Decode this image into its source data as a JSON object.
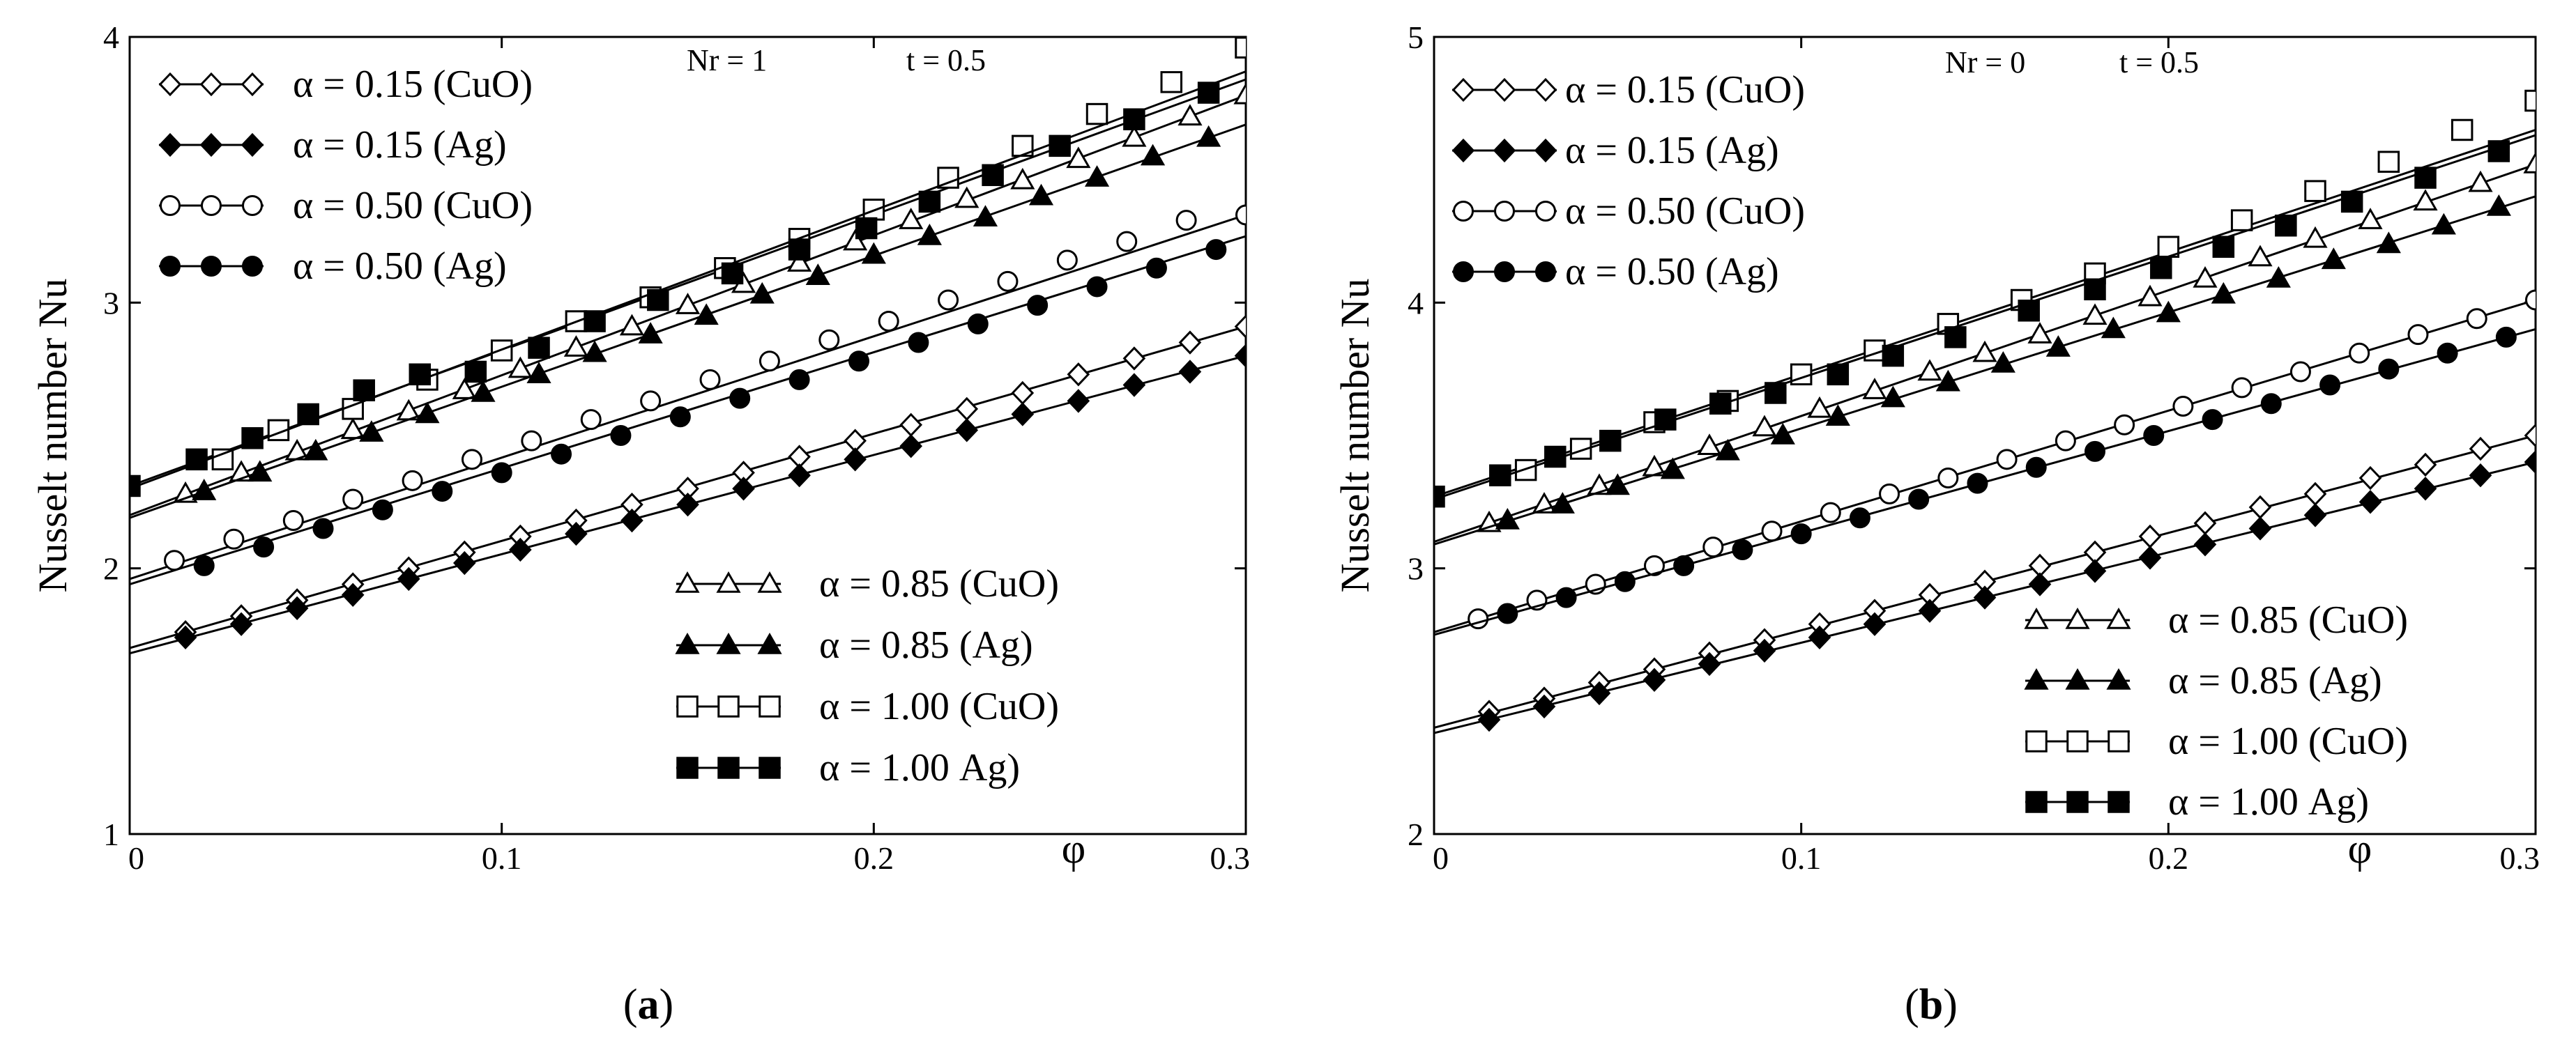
{
  "chart_data": [
    {
      "id": "a",
      "type": "line",
      "caption": "(a)",
      "caption_letter": "a",
      "ylabel": "Nusselt number Nu",
      "xlabel": "φ",
      "annotation": {
        "nr": "Nr = 1",
        "t": "t = 0.5"
      },
      "xlim": [
        0,
        0.3
      ],
      "ylim": [
        1,
        4
      ],
      "xticks": [
        0,
        0.1,
        0.2,
        0.3
      ],
      "xtick_labels": [
        "0",
        "0.1",
        "0.2",
        "0.3"
      ],
      "yticks": [
        1,
        2,
        3,
        4
      ],
      "ytick_labels": [
        "1",
        "2",
        "3",
        "4"
      ],
      "legend_top": [
        {
          "series": 0,
          "label": "α = 0.15 (CuO)"
        },
        {
          "series": 1,
          "label": "α = 0.15 (Ag)"
        },
        {
          "series": 2,
          "label": "α = 0.50 (CuO)"
        },
        {
          "series": 3,
          "label": "α = 0.50 (Ag)"
        }
      ],
      "legend_bottom": [
        {
          "series": 4,
          "label": "α = 0.85 (CuO)"
        },
        {
          "series": 5,
          "label": "α = 0.85 (Ag)"
        },
        {
          "series": 6,
          "label": "α = 1.00 (CuO)"
        },
        {
          "series": 7,
          "label": "α = 1.00 Ag)"
        }
      ],
      "series": [
        {
          "name": "α = 0.15 (CuO)",
          "marker": "diamond",
          "fill": "open",
          "line": [
            1.7,
            2.91
          ],
          "x": [
            0.015,
            0.03,
            0.045,
            0.06,
            0.075,
            0.09,
            0.105,
            0.12,
            0.135,
            0.15,
            0.165,
            0.18,
            0.195,
            0.21,
            0.225,
            0.24,
            0.255,
            0.27,
            0.285,
            0.3
          ],
          "y": [
            1.76,
            1.82,
            1.88,
            1.94,
            2.0,
            2.06,
            2.12,
            2.18,
            2.24,
            2.3,
            2.36,
            2.42,
            2.48,
            2.54,
            2.6,
            2.66,
            2.73,
            2.79,
            2.85,
            2.91
          ]
        },
        {
          "name": "α = 0.15 (Ag)",
          "marker": "diamond",
          "fill": "filled",
          "line": [
            1.68,
            2.8
          ],
          "x": [
            0.015,
            0.03,
            0.045,
            0.06,
            0.075,
            0.09,
            0.105,
            0.12,
            0.135,
            0.15,
            0.165,
            0.18,
            0.195,
            0.21,
            0.225,
            0.24,
            0.255,
            0.27,
            0.285,
            0.3
          ],
          "y": [
            1.74,
            1.79,
            1.85,
            1.9,
            1.96,
            2.02,
            2.07,
            2.13,
            2.18,
            2.24,
            2.3,
            2.35,
            2.41,
            2.46,
            2.52,
            2.58,
            2.63,
            2.69,
            2.74,
            2.8
          ]
        },
        {
          "name": "α = 0.50 (CuO)",
          "marker": "circle",
          "fill": "open",
          "line": [
            1.96,
            3.33
          ],
          "x": [
            0.012,
            0.028,
            0.044,
            0.06,
            0.076,
            0.092,
            0.108,
            0.124,
            0.14,
            0.156,
            0.172,
            0.188,
            0.204,
            0.22,
            0.236,
            0.252,
            0.268,
            0.284,
            0.3
          ],
          "y": [
            2.03,
            2.11,
            2.18,
            2.26,
            2.33,
            2.41,
            2.48,
            2.56,
            2.63,
            2.71,
            2.78,
            2.86,
            2.93,
            3.01,
            3.08,
            3.16,
            3.23,
            3.31,
            3.33
          ]
        },
        {
          "name": "α = 0.50 (Ag)",
          "marker": "circle",
          "fill": "filled",
          "line": [
            1.94,
            3.25
          ],
          "x": [
            0.02,
            0.036,
            0.052,
            0.068,
            0.084,
            0.1,
            0.116,
            0.132,
            0.148,
            0.164,
            0.18,
            0.196,
            0.212,
            0.228,
            0.244,
            0.26,
            0.276,
            0.292
          ],
          "y": [
            2.01,
            2.08,
            2.15,
            2.22,
            2.29,
            2.36,
            2.43,
            2.5,
            2.57,
            2.64,
            2.71,
            2.78,
            2.85,
            2.92,
            2.99,
            3.06,
            3.13,
            3.2
          ]
        },
        {
          "name": "α = 0.85 (CuO)",
          "marker": "triangle",
          "fill": "open",
          "line": [
            2.2,
            3.78
          ],
          "x": [
            0.015,
            0.03,
            0.045,
            0.06,
            0.075,
            0.09,
            0.105,
            0.12,
            0.135,
            0.15,
            0.165,
            0.18,
            0.195,
            0.21,
            0.225,
            0.24,
            0.255,
            0.27,
            0.285,
            0.3
          ],
          "y": [
            2.28,
            2.36,
            2.44,
            2.52,
            2.59,
            2.67,
            2.75,
            2.83,
            2.91,
            2.99,
            3.07,
            3.15,
            3.23,
            3.31,
            3.39,
            3.46,
            3.54,
            3.62,
            3.7,
            3.78
          ]
        },
        {
          "name": "α = 0.85 (Ag)",
          "marker": "triangle",
          "fill": "filled",
          "line": [
            2.19,
            3.67
          ],
          "x": [
            0.02,
            0.035,
            0.05,
            0.065,
            0.08,
            0.095,
            0.11,
            0.125,
            0.14,
            0.155,
            0.17,
            0.185,
            0.2,
            0.215,
            0.23,
            0.245,
            0.26,
            0.275,
            0.29
          ],
          "y": [
            2.29,
            2.36,
            2.44,
            2.51,
            2.58,
            2.66,
            2.73,
            2.81,
            2.88,
            2.95,
            3.03,
            3.1,
            3.18,
            3.25,
            3.32,
            3.4,
            3.47,
            3.55,
            3.62
          ]
        },
        {
          "name": "α = 1.00 (CuO)",
          "marker": "square",
          "fill": "open",
          "line": [
            2.31,
            3.84
          ],
          "x": [
            0.025,
            0.04,
            0.06,
            0.08,
            0.1,
            0.12,
            0.14,
            0.16,
            0.18,
            0.2,
            0.22,
            0.24,
            0.26,
            0.28,
            0.3
          ],
          "y": [
            2.41,
            2.52,
            2.6,
            2.71,
            2.82,
            2.93,
            3.02,
            3.13,
            3.24,
            3.35,
            3.47,
            3.59,
            3.71,
            3.83,
            3.96
          ]
        },
        {
          "name": "α = 1.00 Ag)",
          "marker": "square",
          "fill": "filled",
          "line": [
            2.3,
            3.87
          ],
          "x": [
            0,
            0.018,
            0.033,
            0.048,
            0.063,
            0.078,
            0.093,
            0.11,
            0.125,
            0.142,
            0.162,
            0.18,
            0.198,
            0.215,
            0.232,
            0.25,
            0.27,
            0.29
          ],
          "y": [
            2.31,
            2.41,
            2.49,
            2.58,
            2.67,
            2.73,
            2.74,
            2.83,
            2.93,
            3.01,
            3.11,
            3.2,
            3.28,
            3.38,
            3.48,
            3.59,
            3.69,
            3.79
          ]
        }
      ]
    },
    {
      "id": "b",
      "type": "line",
      "caption": "(b)",
      "caption_letter": "b",
      "ylabel": "Nusselt number Nu",
      "xlabel": "φ",
      "annotation": {
        "nr": "Nr = 0",
        "t": "t = 0.5"
      },
      "xlim": [
        0,
        0.3
      ],
      "ylim": [
        2,
        5
      ],
      "xticks": [
        0,
        0.1,
        0.2,
        0.3
      ],
      "xtick_labels": [
        "0",
        "0.1",
        "0.2",
        "0.3"
      ],
      "yticks": [
        2,
        3,
        4,
        5
      ],
      "ytick_labels": [
        "2",
        "3",
        "4",
        "5"
      ],
      "legend_top": [
        {
          "series": 0,
          "label": "α = 0.15 (CuO)"
        },
        {
          "series": 1,
          "label": "α = 0.15 (Ag)"
        },
        {
          "series": 2,
          "label": "α = 0.50 (CuO)"
        },
        {
          "series": 3,
          "label": "α = 0.50 (Ag)"
        }
      ],
      "legend_bottom": [
        {
          "series": 4,
          "label": "α = 0.85 (CuO)"
        },
        {
          "series": 5,
          "label": "α = 0.85 (Ag)"
        },
        {
          "series": 6,
          "label": "α = 1.00 (CuO)"
        },
        {
          "series": 7,
          "label": "α = 1.00 Ag)"
        }
      ],
      "series": [
        {
          "name": "α = 0.15 (CuO)",
          "marker": "diamond",
          "fill": "open",
          "line": [
            2.4,
            3.5
          ],
          "x": [
            0.015,
            0.03,
            0.045,
            0.06,
            0.075,
            0.09,
            0.105,
            0.12,
            0.135,
            0.15,
            0.165,
            0.18,
            0.195,
            0.21,
            0.225,
            0.24,
            0.255,
            0.27,
            0.285,
            0.3
          ],
          "y": [
            2.46,
            2.51,
            2.57,
            2.62,
            2.68,
            2.73,
            2.79,
            2.84,
            2.9,
            2.95,
            3.01,
            3.06,
            3.12,
            3.17,
            3.23,
            3.28,
            3.34,
            3.39,
            3.45,
            3.5
          ]
        },
        {
          "name": "α = 0.15 (Ag)",
          "marker": "diamond",
          "fill": "filled",
          "line": [
            2.38,
            3.4
          ],
          "x": [
            0.015,
            0.03,
            0.045,
            0.06,
            0.075,
            0.09,
            0.105,
            0.12,
            0.135,
            0.15,
            0.165,
            0.18,
            0.195,
            0.21,
            0.225,
            0.24,
            0.255,
            0.27,
            0.285,
            0.3
          ],
          "y": [
            2.43,
            2.48,
            2.53,
            2.58,
            2.64,
            2.69,
            2.74,
            2.79,
            2.84,
            2.89,
            2.94,
            2.99,
            3.04,
            3.09,
            3.15,
            3.2,
            3.25,
            3.3,
            3.35,
            3.4
          ]
        },
        {
          "name": "α = 0.50 (CuO)",
          "marker": "circle",
          "fill": "open",
          "line": [
            2.76,
            4.01
          ],
          "x": [
            0.012,
            0.028,
            0.044,
            0.06,
            0.076,
            0.092,
            0.108,
            0.124,
            0.14,
            0.156,
            0.172,
            0.188,
            0.204,
            0.22,
            0.236,
            0.252,
            0.268,
            0.284,
            0.3
          ],
          "y": [
            2.81,
            2.88,
            2.94,
            3.01,
            3.08,
            3.14,
            3.21,
            3.28,
            3.34,
            3.41,
            3.48,
            3.54,
            3.61,
            3.68,
            3.74,
            3.81,
            3.88,
            3.94,
            4.01
          ]
        },
        {
          "name": "α = 0.50 (Ag)",
          "marker": "circle",
          "fill": "filled",
          "line": [
            2.75,
            3.9
          ],
          "x": [
            0.02,
            0.036,
            0.052,
            0.068,
            0.084,
            0.1,
            0.116,
            0.132,
            0.148,
            0.164,
            0.18,
            0.196,
            0.212,
            0.228,
            0.244,
            0.26,
            0.276,
            0.292
          ],
          "y": [
            2.83,
            2.89,
            2.95,
            3.01,
            3.07,
            3.13,
            3.19,
            3.26,
            3.32,
            3.38,
            3.44,
            3.5,
            3.56,
            3.62,
            3.69,
            3.75,
            3.81,
            3.87
          ]
        },
        {
          "name": "α = 0.85 (CuO)",
          "marker": "triangle",
          "fill": "open",
          "line": [
            3.1,
            4.52
          ],
          "x": [
            0.015,
            0.03,
            0.045,
            0.06,
            0.075,
            0.09,
            0.105,
            0.12,
            0.135,
            0.15,
            0.165,
            0.18,
            0.195,
            0.21,
            0.225,
            0.24,
            0.255,
            0.27,
            0.285,
            0.3
          ],
          "y": [
            3.17,
            3.24,
            3.31,
            3.38,
            3.46,
            3.53,
            3.6,
            3.67,
            3.74,
            3.81,
            3.88,
            3.95,
            4.02,
            4.09,
            4.17,
            4.24,
            4.31,
            4.38,
            4.45,
            4.52
          ]
        },
        {
          "name": "α = 0.85 (Ag)",
          "marker": "triangle",
          "fill": "filled",
          "line": [
            3.09,
            4.4
          ],
          "x": [
            0.02,
            0.035,
            0.05,
            0.065,
            0.08,
            0.095,
            0.11,
            0.125,
            0.14,
            0.155,
            0.17,
            0.185,
            0.2,
            0.215,
            0.23,
            0.245,
            0.26,
            0.275,
            0.29
          ],
          "y": [
            3.18,
            3.24,
            3.31,
            3.37,
            3.44,
            3.5,
            3.57,
            3.64,
            3.7,
            3.77,
            3.83,
            3.9,
            3.96,
            4.03,
            4.09,
            4.16,
            4.22,
            4.29,
            4.36
          ]
        },
        {
          "name": "α = 1.00 (CuO)",
          "marker": "square",
          "fill": "open",
          "line": [
            3.27,
            4.65
          ],
          "x": [
            0.025,
            0.04,
            0.06,
            0.08,
            0.1,
            0.12,
            0.14,
            0.16,
            0.18,
            0.2,
            0.22,
            0.24,
            0.26,
            0.28,
            0.3
          ],
          "y": [
            3.37,
            3.45,
            3.55,
            3.63,
            3.73,
            3.82,
            3.92,
            4.01,
            4.11,
            4.21,
            4.31,
            4.42,
            4.53,
            4.65,
            4.76
          ]
        },
        {
          "name": "α = 1.00 Ag)",
          "marker": "square",
          "fill": "filled",
          "line": [
            3.26,
            4.63
          ],
          "x": [
            0,
            0.018,
            0.033,
            0.048,
            0.063,
            0.078,
            0.093,
            0.11,
            0.125,
            0.142,
            0.162,
            0.18,
            0.198,
            0.215,
            0.232,
            0.25,
            0.27,
            0.29
          ],
          "y": [
            3.27,
            3.35,
            3.42,
            3.48,
            3.56,
            3.62,
            3.66,
            3.73,
            3.8,
            3.87,
            3.97,
            4.05,
            4.13,
            4.21,
            4.29,
            4.38,
            4.47,
            4.57
          ]
        }
      ]
    }
  ]
}
